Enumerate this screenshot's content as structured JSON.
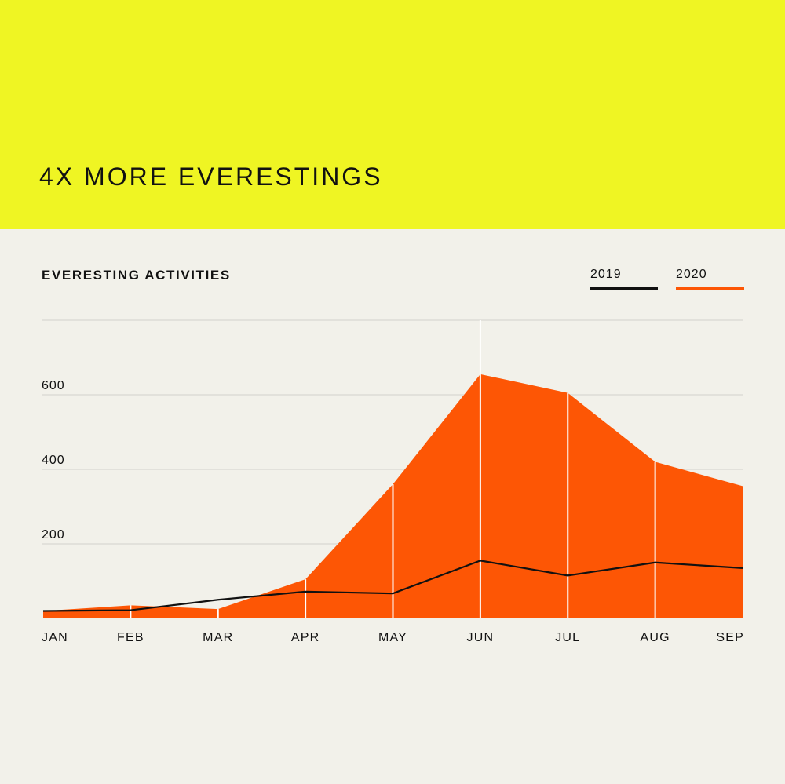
{
  "header": {
    "headline": "4X MORE EVERESTINGS",
    "background_color": "#eff523"
  },
  "chart_data": {
    "type": "area",
    "title": "EVERESTING ACTIVITIES",
    "categories": [
      "JAN",
      "FEB",
      "MAR",
      "APR",
      "MAY",
      "JUN",
      "JUL",
      "AUG",
      "SEP"
    ],
    "series": [
      {
        "name": "2019",
        "type": "line",
        "color": "#111111",
        "values": [
          20,
          22,
          50,
          72,
          67,
          155,
          115,
          150,
          135
        ]
      },
      {
        "name": "2020",
        "type": "area",
        "color": "#fd5605",
        "values": [
          20,
          35,
          25,
          105,
          360,
          655,
          605,
          420,
          355
        ]
      }
    ],
    "y_ticks": [
      200,
      400,
      600
    ],
    "ylim": [
      0,
      800
    ],
    "grid": true,
    "legend_position": "top-right"
  }
}
